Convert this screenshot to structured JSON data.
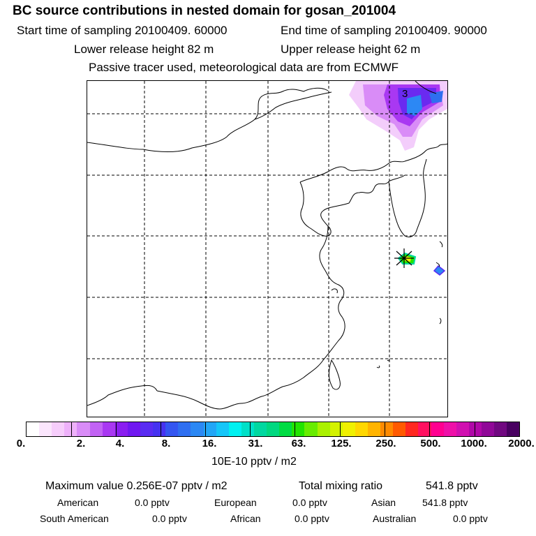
{
  "header": {
    "title": "BC  source contributions in nested domain for gosan_201004",
    "start_label": "Start time of sampling 20100409. 60000",
    "end_label": "End time of sampling 20100409. 90000",
    "lower_label": "Lower release height   82 m",
    "upper_label": "Upper release height   62 m",
    "tracer_note": "Passive tracer used, meteorological data are from ECMWF"
  },
  "map": {
    "contour_label": "3",
    "gridlines": "dashed",
    "receptor_marker": "asterisk"
  },
  "colorbar": {
    "ticks": [
      "0.",
      "2.",
      "4.",
      "8.",
      "16.",
      "31.",
      "63.",
      "125.",
      "250.",
      "500.",
      "1000.",
      "2000."
    ],
    "unit": "10E-10 pptv / m2",
    "colors": [
      "#ffffff",
      "#fbe6fd",
      "#f6cdfb",
      "#eeb1fa",
      "#d98cf7",
      "#c263f4",
      "#a938f2",
      "#8a1ef0",
      "#7018f0",
      "#5a2cf2",
      "#4632f0",
      "#3456f0",
      "#2f6ff0",
      "#2c88f4",
      "#22a6f6",
      "#16c6f8",
      "#00f0f0",
      "#00e0c8",
      "#00d8a0",
      "#00d880",
      "#00dc44",
      "#22e400",
      "#68ec00",
      "#aaf000",
      "#d4f200",
      "#f0f000",
      "#ffd700",
      "#ffb400",
      "#ff8a00",
      "#ff5a00",
      "#ff2820",
      "#ff1060",
      "#ff0090",
      "#ee10a8",
      "#d010b0",
      "#b008a8",
      "#900898",
      "#700880",
      "#480060"
    ]
  },
  "stats": {
    "max_label": "Maximum value  0.256E-07 pptv / m2",
    "total_label": "Total mixing ratio",
    "total_value": "541.8 pptv",
    "regions": [
      {
        "name": "American",
        "value": "0.0 pptv"
      },
      {
        "name": "European",
        "value": "0.0 pptv"
      },
      {
        "name": "Asian",
        "value": "541.8 pptv"
      },
      {
        "name": "South American",
        "value": "0.0 pptv"
      },
      {
        "name": "African",
        "value": "0.0 pptv"
      },
      {
        "name": "Australian",
        "value": "0.0 pptv"
      }
    ]
  }
}
